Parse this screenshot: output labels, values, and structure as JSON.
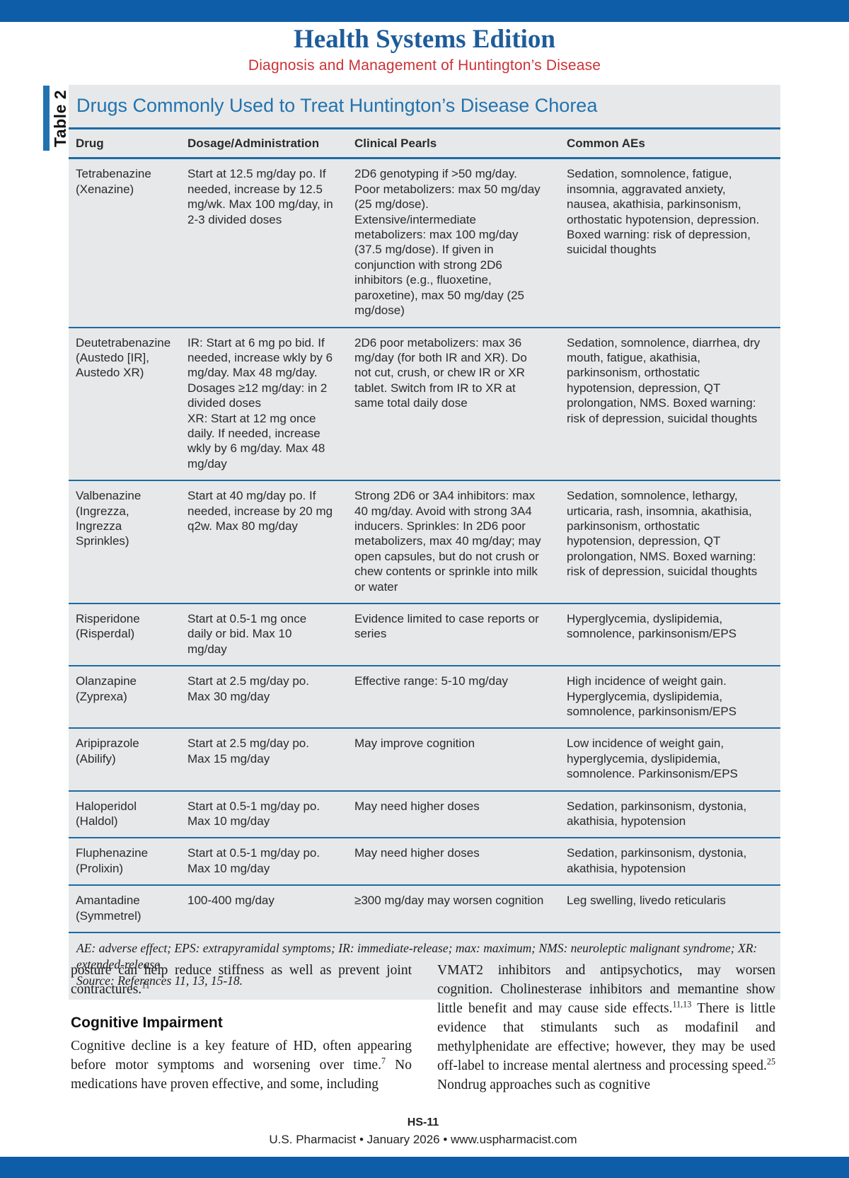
{
  "page": {
    "masthead": {
      "title": "Health Systems Edition",
      "subtitle": "Diagnosis and Management of Huntington’s Disease"
    },
    "footer": {
      "page_code": "HS-11",
      "publication_line": "U.S. Pharmacist • January 2026 • www.uspharmacist.com"
    }
  },
  "table": {
    "side_label": "Table 2",
    "title": "Drugs Commonly Used to Treat Huntington’s Disease Chorea",
    "columns": [
      "Drug",
      "Dosage/Administration",
      "Clinical Pearls",
      "Common AEs"
    ],
    "rows": [
      {
        "drug": "Tetrabenazine\n(Xenazine)",
        "dosage": "Start at 12.5 mg/day po. If needed, increase by 12.5 mg/wk. Max 100 mg/day, in 2-3 divided doses",
        "pearls": "2D6 genotyping if >50 mg/day. Poor metabolizers: max 50 mg/day (25 mg/dose). Extensive/intermediate metabolizers: max 100 mg/day (37.5 mg/dose). If given in conjunction with strong 2D6 inhibitors (e.g., fluoxetine, paroxetine), max 50 mg/day (25 mg/dose)",
        "aes": "Sedation, somnolence, fatigue, insomnia, aggravated anxiety, nausea, akathisia, parkinsonism, orthostatic hypotension, depression. Boxed warning: risk of depression, suicidal thoughts"
      },
      {
        "drug": "Deutetrabenazine\n(Austedo [IR],\nAustedo XR)",
        "dosage": "IR: Start at 6 mg po bid. If needed, increase wkly by 6 mg/day. Max 48 mg/day. Dosages ≥12 mg/day: in 2 divided doses\nXR: Start at 12 mg once daily. If needed, increase wkly by 6 mg/day. Max 48 mg/day",
        "pearls": "2D6 poor metabolizers: max 36 mg/day (for both IR and XR). Do not cut, crush, or chew IR or XR tablet. Switch from IR to XR at same total daily dose",
        "aes": "Sedation, somnolence, diarrhea, dry mouth, fatigue, akathisia, parkinsonism, orthostatic hypotension, depression, QT prolongation, NMS. Boxed warning: risk of depression, suicidal thoughts"
      },
      {
        "drug": "Valbenazine\n(Ingrezza,\nIngrezza\nSprinkles)",
        "dosage": "Start at 40 mg/day po. If needed, increase by 20 mg q2w. Max 80 mg/day",
        "pearls": "Strong 2D6 or 3A4 inhibitors: max 40 mg/day. Avoid with strong 3A4 inducers. Sprinkles: In 2D6 poor metabolizers, max 40 mg/day; may open capsules, but do not crush or chew contents or sprinkle into milk or water",
        "aes": "Sedation, somnolence, lethargy, urticaria, rash, insomnia, akathisia, parkinsonism, orthostatic hypotension, depression, QT prolongation, NMS. Boxed warning: risk of depression, suicidal thoughts"
      },
      {
        "drug": "Risperidone\n(Risperdal)",
        "dosage": "Start at 0.5-1 mg once daily or bid. Max 10 mg/day",
        "pearls": "Evidence limited to case reports or series",
        "aes": "Hyperglycemia, dyslipidemia, somnolence, parkinsonism/EPS"
      },
      {
        "drug": "Olanzapine\n(Zyprexa)",
        "dosage": "Start at 2.5 mg/day po. Max 30 mg/day",
        "pearls": "Effective range: 5-10 mg/day",
        "aes": "High incidence of weight gain. Hyperglycemia, dyslipidemia, somnolence, parkinsonism/EPS"
      },
      {
        "drug": "Aripiprazole\n(Abilify)",
        "dosage": "Start at 2.5 mg/day po. Max 15 mg/day",
        "pearls": "May improve cognition",
        "aes": "Low incidence of weight gain, hyperglycemia, dyslipidemia, somnolence. Parkinsonism/EPS"
      },
      {
        "drug": "Haloperidol\n(Haldol)",
        "dosage": "Start at 0.5-1 mg/day po. Max 10 mg/day",
        "pearls": "May need higher doses",
        "aes": "Sedation, parkinsonism, dystonia, akathisia, hypotension"
      },
      {
        "drug": "Fluphenazine\n(Prolixin)",
        "dosage": "Start at 0.5-1 mg/day po. Max 10 mg/day",
        "pearls": "May need higher doses",
        "aes": "Sedation, parkinsonism, dystonia, akathisia, hypotension"
      },
      {
        "drug": "Amantadine\n(Symmetrel)",
        "dosage": "100-400 mg/day",
        "pearls": "≥300 mg/day may worsen cognition",
        "aes": "Leg swelling, livedo reticularis"
      }
    ],
    "footnote": {
      "abbreviations": "AE: adverse effect; EPS: extrapyramidal symptoms; IR: immediate-release; max: maximum; NMS: neuroleptic malignant syndrome; XR: extended-release.",
      "source": "Source: References 11, 13, 15-18."
    }
  },
  "body": {
    "left": {
      "para1_text": "posture can help reduce stiffness as well as prevent joint contractures.",
      "para1_ref": "11",
      "heading": "Cognitive Impairment",
      "para2_seg1": "Cognitive decline is a key feature of HD, often appearing before motor symptoms and worsening over time.",
      "para2_ref1": "7",
      "para2_seg2": " No medications have proven effective, and some, including"
    },
    "right": {
      "para_seg1": "VMAT2 inhibitors and antipsychotics, may worsen cognition. Cholinesterase inhibitors and memantine show little benefit and may cause side effects.",
      "para_ref1": "11,13",
      "para_seg2": " There is little evidence that stimulants such as modafinil and methylphenidate are effective; however, they may be used off-label to increase mental alertness and processing speed.",
      "para_ref2": "25",
      "para_seg3": " Nondrug approaches such as cognitive"
    }
  },
  "colors": {
    "bar_blue": "#0e5da9",
    "masthead_title_blue": "#1e5c9a",
    "subtitle_red": "#cc3136",
    "table_title_blue": "#2173b0",
    "rule_blue": "#1b6ba5",
    "table_background_gray": "#e7e8e9"
  }
}
